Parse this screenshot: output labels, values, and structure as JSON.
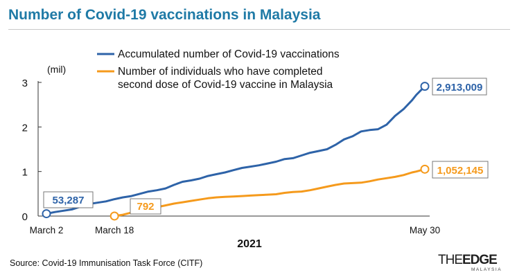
{
  "title": "Number of Covid-19 vaccinations in Malaysia",
  "source": "Source: Covid-19 Immunisation Task Force (CITF)",
  "brand": {
    "main_light": "THE",
    "main_bold": "EDGE",
    "sub": "MALAYSIA"
  },
  "colors": {
    "title": "#1f7aa6",
    "series_accumulated": "#2e63a8",
    "series_completed": "#f59a1c"
  },
  "chart_data": {
    "type": "line",
    "ylabel": "(mil)",
    "xlabel": "2021",
    "ylim": [
      0,
      3
    ],
    "yticks": [
      0,
      1,
      2,
      3
    ],
    "grid": false,
    "legend_position": "top",
    "x_tick_labels": [
      "March 2",
      "March 18",
      "May 30"
    ],
    "series": [
      {
        "name": "Accumulated number of Covid-19 vaccinations",
        "end_label": "2,913,009",
        "start_label": "53,287",
        "points": [
          [
            "2021-03-02",
            0.053
          ],
          [
            "2021-03-04",
            0.09
          ],
          [
            "2021-03-06",
            0.12
          ],
          [
            "2021-03-08",
            0.15
          ],
          [
            "2021-03-10",
            0.21
          ],
          [
            "2021-03-12",
            0.27
          ],
          [
            "2021-03-14",
            0.3
          ],
          [
            "2021-03-16",
            0.33
          ],
          [
            "2021-03-18",
            0.38
          ],
          [
            "2021-03-20",
            0.42
          ],
          [
            "2021-03-22",
            0.45
          ],
          [
            "2021-03-24",
            0.5
          ],
          [
            "2021-03-26",
            0.55
          ],
          [
            "2021-03-28",
            0.58
          ],
          [
            "2021-03-30",
            0.62
          ],
          [
            "2021-04-01",
            0.7
          ],
          [
            "2021-04-03",
            0.77
          ],
          [
            "2021-04-05",
            0.8
          ],
          [
            "2021-04-07",
            0.84
          ],
          [
            "2021-04-09",
            0.9
          ],
          [
            "2021-04-11",
            0.94
          ],
          [
            "2021-04-13",
            0.98
          ],
          [
            "2021-04-15",
            1.03
          ],
          [
            "2021-04-17",
            1.08
          ],
          [
            "2021-04-19",
            1.11
          ],
          [
            "2021-04-21",
            1.14
          ],
          [
            "2021-04-23",
            1.18
          ],
          [
            "2021-04-25",
            1.22
          ],
          [
            "2021-04-27",
            1.28
          ],
          [
            "2021-04-29",
            1.3
          ],
          [
            "2021-05-01",
            1.36
          ],
          [
            "2021-05-03",
            1.42
          ],
          [
            "2021-05-05",
            1.46
          ],
          [
            "2021-05-07",
            1.5
          ],
          [
            "2021-05-09",
            1.6
          ],
          [
            "2021-05-11",
            1.72
          ],
          [
            "2021-05-13",
            1.79
          ],
          [
            "2021-05-15",
            1.9
          ],
          [
            "2021-05-17",
            1.93
          ],
          [
            "2021-05-19",
            1.95
          ],
          [
            "2021-05-21",
            2.05
          ],
          [
            "2021-05-23",
            2.25
          ],
          [
            "2021-05-25",
            2.4
          ],
          [
            "2021-05-27",
            2.6
          ],
          [
            "2021-05-28",
            2.72
          ],
          [
            "2021-05-30",
            2.913
          ]
        ]
      },
      {
        "name": "Number of individuals who have completed second dose of Covid-19 vaccine in Malaysia",
        "end_label": "1,052,145",
        "start_label": "792",
        "points": [
          [
            "2021-03-18",
            0.0008
          ],
          [
            "2021-03-20",
            0.03
          ],
          [
            "2021-03-22",
            0.08
          ],
          [
            "2021-03-24",
            0.12
          ],
          [
            "2021-03-26",
            0.16
          ],
          [
            "2021-03-28",
            0.2
          ],
          [
            "2021-03-30",
            0.24
          ],
          [
            "2021-04-01",
            0.28
          ],
          [
            "2021-04-03",
            0.31
          ],
          [
            "2021-04-05",
            0.34
          ],
          [
            "2021-04-07",
            0.37
          ],
          [
            "2021-04-09",
            0.4
          ],
          [
            "2021-04-11",
            0.42
          ],
          [
            "2021-04-13",
            0.43
          ],
          [
            "2021-04-15",
            0.44
          ],
          [
            "2021-04-17",
            0.45
          ],
          [
            "2021-04-19",
            0.46
          ],
          [
            "2021-04-21",
            0.47
          ],
          [
            "2021-04-23",
            0.48
          ],
          [
            "2021-04-25",
            0.49
          ],
          [
            "2021-04-27",
            0.52
          ],
          [
            "2021-04-29",
            0.54
          ],
          [
            "2021-05-01",
            0.55
          ],
          [
            "2021-05-03",
            0.58
          ],
          [
            "2021-05-05",
            0.62
          ],
          [
            "2021-05-07",
            0.66
          ],
          [
            "2021-05-09",
            0.7
          ],
          [
            "2021-05-11",
            0.73
          ],
          [
            "2021-05-13",
            0.74
          ],
          [
            "2021-05-15",
            0.75
          ],
          [
            "2021-05-17",
            0.78
          ],
          [
            "2021-05-19",
            0.82
          ],
          [
            "2021-05-21",
            0.85
          ],
          [
            "2021-05-23",
            0.88
          ],
          [
            "2021-05-25",
            0.92
          ],
          [
            "2021-05-27",
            0.98
          ],
          [
            "2021-05-28",
            1.0
          ],
          [
            "2021-05-30",
            1.052
          ]
        ]
      }
    ]
  }
}
